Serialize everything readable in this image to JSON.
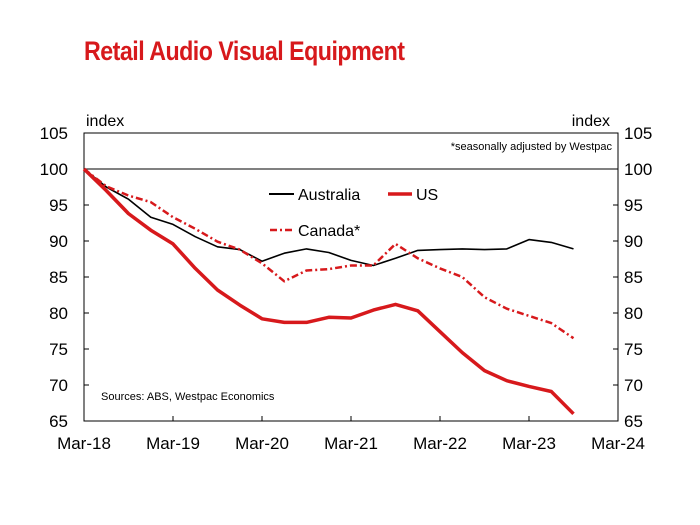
{
  "chart_data": {
    "type": "line",
    "title": "Retail Audio Visual Equipment",
    "note": "*seasonally adjusted by Westpac",
    "source": "Sources: ABS, Westpac Economics",
    "ylabel_left": "index",
    "ylabel_right": "index",
    "ylim": [
      65,
      105
    ],
    "yticks": [
      65,
      70,
      75,
      80,
      85,
      90,
      95,
      100,
      105
    ],
    "xlim": [
      2018.0,
      2024.0
    ],
    "xticks": [
      {
        "x": 2018.0,
        "label": "Mar-18"
      },
      {
        "x": 2019.0,
        "label": "Mar-19"
      },
      {
        "x": 2020.0,
        "label": "Mar-20"
      },
      {
        "x": 2021.0,
        "label": "Mar-21"
      },
      {
        "x": 2022.0,
        "label": "Mar-22"
      },
      {
        "x": 2023.0,
        "label": "Mar-23"
      },
      {
        "x": 2024.0,
        "label": "Mar-24"
      }
    ],
    "reference_line": 100,
    "legend": "top-center",
    "series": [
      {
        "name": "Australia",
        "color": "#000000",
        "style": "solid",
        "x": [
          2018.0,
          2018.25,
          2018.5,
          2018.75,
          2019.0,
          2019.25,
          2019.5,
          2019.75,
          2020.0,
          2020.25,
          2020.5,
          2020.75,
          2021.0,
          2021.25,
          2021.5,
          2021.75,
          2022.0,
          2022.25,
          2022.5,
          2022.75,
          2023.0,
          2023.25,
          2023.5
        ],
        "y": [
          100,
          97.5,
          95.8,
          93.3,
          92.3,
          90.6,
          89.2,
          88.8,
          87.2,
          88.3,
          88.9,
          88.4,
          87.3,
          86.6,
          87.6,
          88.7,
          88.8,
          88.9,
          88.8,
          88.9,
          90.2,
          89.8,
          88.9
        ]
      },
      {
        "name": "US",
        "color": "#d7191c",
        "style": "solid",
        "x": [
          2018.0,
          2018.25,
          2018.5,
          2018.75,
          2019.0,
          2019.25,
          2019.5,
          2019.75,
          2020.0,
          2020.25,
          2020.5,
          2020.75,
          2021.0,
          2021.25,
          2021.5,
          2021.75,
          2022.0,
          2022.25,
          2022.5,
          2022.75,
          2023.0,
          2023.25,
          2023.5
        ],
        "y": [
          100,
          97.0,
          93.8,
          91.5,
          89.6,
          86.2,
          83.2,
          81.1,
          79.2,
          78.7,
          78.7,
          79.4,
          79.3,
          80.4,
          81.2,
          80.3,
          77.4,
          74.5,
          72.0,
          70.6,
          69.8,
          69.1,
          66.0
        ]
      },
      {
        "name": "Canada*",
        "color": "#d7191c",
        "style": "dash-dot",
        "x": [
          2018.0,
          2018.25,
          2018.5,
          2018.75,
          2019.0,
          2019.25,
          2019.5,
          2019.75,
          2020.0,
          2020.25,
          2020.5,
          2020.75,
          2021.0,
          2021.25,
          2021.5,
          2021.75,
          2022.0,
          2022.25,
          2022.5,
          2022.75,
          2023.0,
          2023.25,
          2023.5
        ],
        "y": [
          100,
          97.6,
          96.3,
          95.4,
          93.3,
          91.7,
          89.9,
          88.8,
          86.9,
          84.4,
          85.9,
          86.1,
          86.6,
          86.6,
          89.6,
          87.6,
          86.2,
          85.0,
          82.2,
          80.6,
          79.6,
          78.6,
          76.5
        ]
      }
    ]
  }
}
